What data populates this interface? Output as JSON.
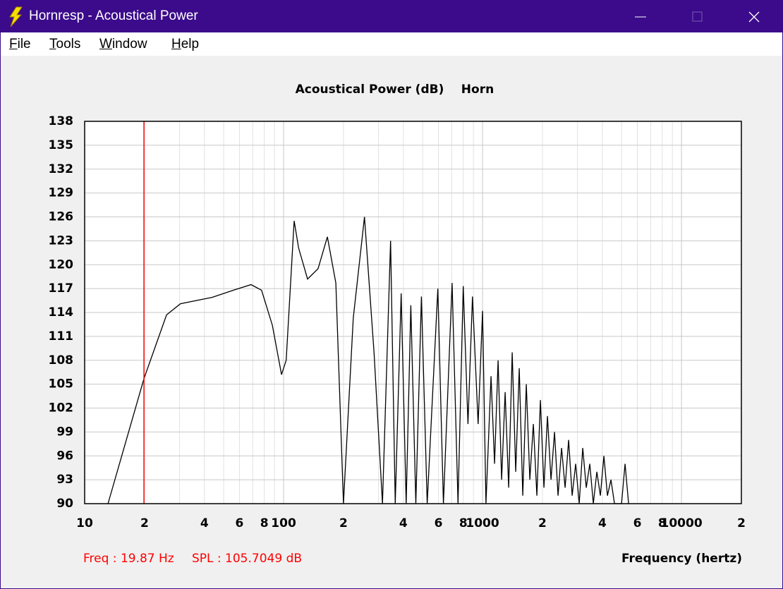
{
  "window": {
    "title": "Hornresp - Acoustical Power"
  },
  "menu": [
    "File",
    "Tools",
    "Window",
    "Help"
  ],
  "status": {
    "freq": "Freq : 19.87 Hz",
    "spl": "SPL : 105.7049 dB"
  },
  "chart_data": {
    "type": "line",
    "title": "Acoustical Power (dB)",
    "subtitle": "Horn",
    "x_label": "Frequency (hertz)",
    "xscale": "log",
    "grid": true,
    "xlim": [
      10,
      20000
    ],
    "ylim": [
      90,
      138
    ],
    "xticks": [
      {
        "value": 10,
        "label": "10"
      },
      {
        "value": 20,
        "label": "2"
      },
      {
        "value": 40,
        "label": "4"
      },
      {
        "value": 60,
        "label": "6"
      },
      {
        "value": 80,
        "label": "8"
      },
      {
        "value": 100,
        "label": "100"
      },
      {
        "value": 200,
        "label": "2"
      },
      {
        "value": 400,
        "label": "4"
      },
      {
        "value": 600,
        "label": "6"
      },
      {
        "value": 800,
        "label": "8"
      },
      {
        "value": 1000,
        "label": "1000"
      },
      {
        "value": 2000,
        "label": "2"
      },
      {
        "value": 4000,
        "label": "4"
      },
      {
        "value": 6000,
        "label": "6"
      },
      {
        "value": 8000,
        "label": "8"
      },
      {
        "value": 10000,
        "label": "10000"
      },
      {
        "value": 20000,
        "label": "2"
      }
    ],
    "yticks": [
      90,
      93,
      96,
      99,
      102,
      105,
      108,
      111,
      114,
      117,
      120,
      123,
      126,
      129,
      132,
      135,
      138
    ],
    "cursor": {
      "x": 19.87,
      "color": "#ff0000"
    },
    "x": [
      13.1,
      19.87,
      25.8,
      30.3,
      43.8,
      56,
      68.6,
      77.5,
      87.8,
      97.6,
      103,
      113,
      119,
      132,
      149,
      166,
      183,
      200,
      224,
      255,
      285,
      314,
      345,
      364,
      390,
      413,
      436,
      462,
      493,
      527,
      596,
      636,
      703,
      753,
      800,
      845,
      890,
      950,
      1000,
      1040,
      1103,
      1149,
      1197,
      1247,
      1299,
      1353,
      1409,
      1468,
      1529,
      1593,
      1659,
      1728,
      1801,
      1875,
      1954,
      2035,
      2120,
      2208,
      2300,
      2396,
      2496,
      2600,
      2708,
      2821,
      2938,
      3061,
      3188,
      3321,
      3459,
      3604,
      3754,
      3910,
      4073,
      4243,
      4420,
      4604,
      4995,
      5204,
      5420
    ],
    "series": [
      {
        "color": "#000000",
        "values": [
          90,
          105.7,
          113.7,
          115.1,
          115.9,
          116.8,
          117.5,
          116.8,
          112.4,
          106.2,
          108,
          125.5,
          122.1,
          118.2,
          119.5,
          123.5,
          117.7,
          90,
          113.3,
          126,
          108.9,
          90,
          123,
          90,
          116.4,
          90,
          114.9,
          90,
          116,
          90,
          117,
          90,
          117.7,
          90,
          117.3,
          100,
          116,
          100,
          114.2,
          90,
          106,
          95,
          108,
          93,
          104,
          92,
          109,
          94,
          107,
          91,
          105,
          93,
          100,
          91,
          103,
          92,
          101,
          93,
          99,
          91,
          97,
          92,
          98,
          91,
          95,
          90,
          97,
          92,
          95,
          90,
          94,
          91,
          96,
          91,
          93,
          90,
          90,
          95,
          90
        ]
      }
    ]
  }
}
